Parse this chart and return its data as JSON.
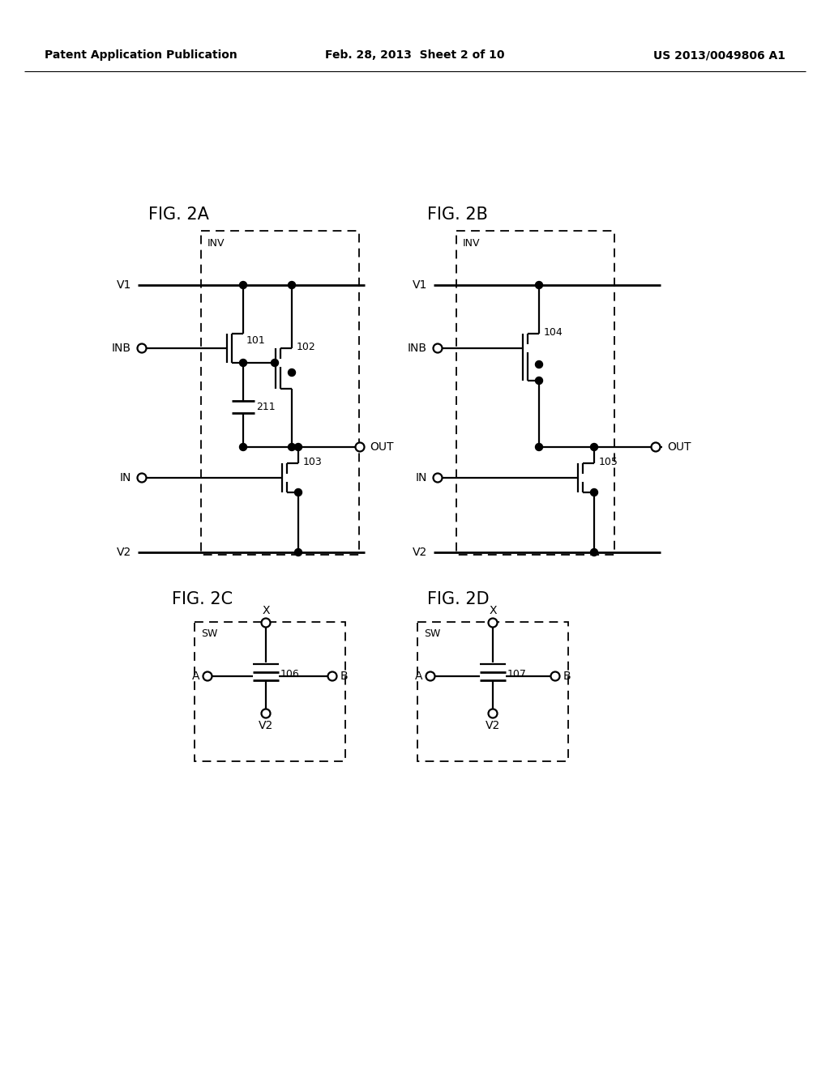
{
  "header_left": "Patent Application Publication",
  "header_center": "Feb. 28, 2013  Sheet 2 of 10",
  "header_right": "US 2013/0049806 A1",
  "bg": "#ffffff"
}
